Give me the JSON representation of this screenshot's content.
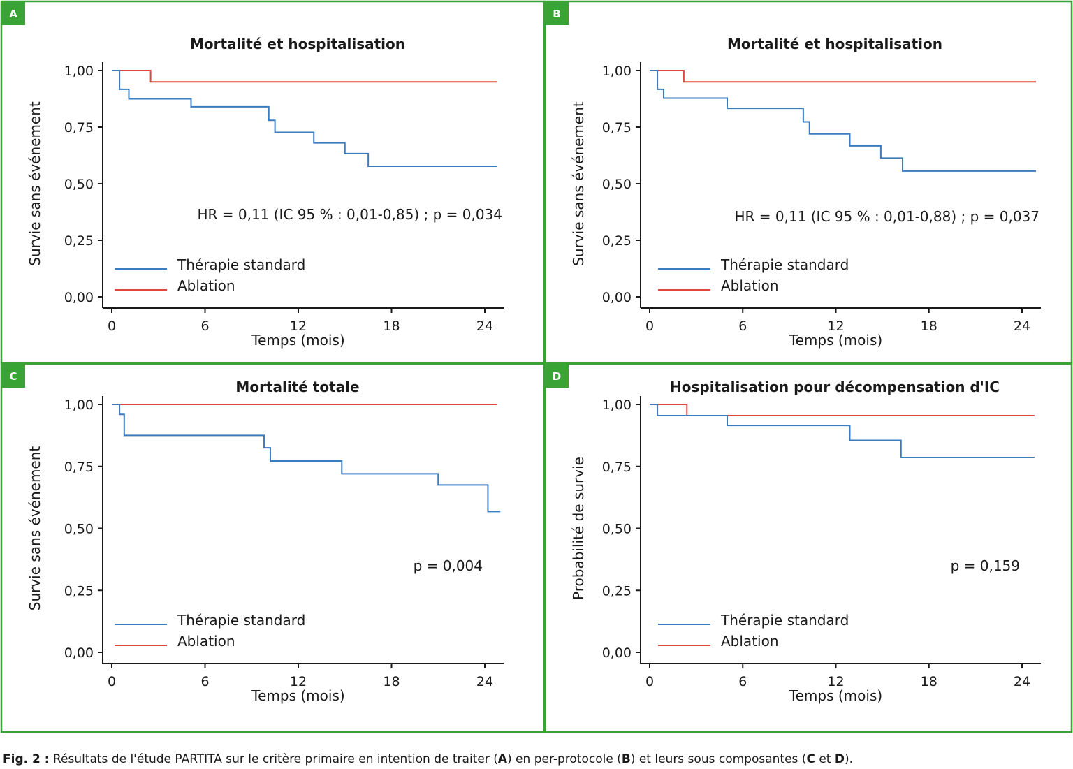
{
  "colors": {
    "frame": "#3aa335",
    "standard": "#3b7bbf",
    "ablation": "#e0463c",
    "axis": "#1a1a1a"
  },
  "chart_data": [
    {
      "panel": "A",
      "type": "line",
      "step": true,
      "title": "Mortalité et hospitalisation",
      "xlabel": "Temps (mois)",
      "ylabel": "Survie sans événement",
      "xticks": [
        "0",
        "6",
        "12",
        "18",
        "24"
      ],
      "yticks": [
        "0,00",
        "0,25",
        "0,50",
        "0,75",
        "1,00"
      ],
      "xlim": [
        0,
        25
      ],
      "ylim": [
        0,
        1
      ],
      "legend": "bottom-left",
      "annotation": "HR = 0,11 (IC 95 % : 0,01-0,85) ; p = 0,034",
      "series": [
        {
          "name": "Thérapie standard",
          "color": "#3b7bbf",
          "x": [
            0,
            0.5,
            1.1,
            5.1,
            10.1,
            10.5,
            13.0,
            15.0,
            16.5,
            24.8
          ],
          "y": [
            1.0,
            0.917,
            0.875,
            0.84,
            0.78,
            0.727,
            0.68,
            0.633,
            0.577,
            0.577
          ]
        },
        {
          "name": "Ablation",
          "color": "#e0463c",
          "x": [
            0,
            2.5,
            24.8
          ],
          "y": [
            1.0,
            0.95,
            0.95
          ]
        }
      ]
    },
    {
      "panel": "B",
      "type": "line",
      "step": true,
      "title": "Mortalité et hospitalisation",
      "xlabel": "Temps (mois)",
      "ylabel": "Survie sans événement",
      "xticks": [
        "0",
        "6",
        "12",
        "18",
        "24"
      ],
      "yticks": [
        "0,00",
        "0,25",
        "0,50",
        "0,75",
        "1,00"
      ],
      "xlim": [
        0,
        25
      ],
      "ylim": [
        0,
        1
      ],
      "legend": "bottom-left",
      "annotation": "HR = 0,11 (IC 95 % : 0,01-0,88) ; p = 0,037",
      "series": [
        {
          "name": "Thérapie standard",
          "color": "#3b7bbf",
          "x": [
            0,
            0.5,
            0.9,
            5.0,
            9.9,
            10.3,
            12.9,
            14.9,
            16.3,
            24.9
          ],
          "y": [
            1.0,
            0.917,
            0.878,
            0.833,
            0.773,
            0.72,
            0.667,
            0.613,
            0.556,
            0.556
          ]
        },
        {
          "name": "Ablation",
          "color": "#e0463c",
          "x": [
            0,
            2.2,
            24.9
          ],
          "y": [
            1.0,
            0.95,
            0.95
          ]
        }
      ]
    },
    {
      "panel": "C",
      "type": "line",
      "step": true,
      "title": "Mortalité totale",
      "xlabel": "Temps (mois)",
      "ylabel": "Survie sans événement",
      "xticks": [
        "0",
        "6",
        "12",
        "18",
        "24"
      ],
      "yticks": [
        "0,00",
        "0,25",
        "0,50",
        "0,75",
        "1,00"
      ],
      "xlim": [
        0,
        25
      ],
      "ylim": [
        0,
        1
      ],
      "legend": "bottom-left",
      "annotation": "p = 0,004",
      "series": [
        {
          "name": "Thérapie standard",
          "color": "#3b7bbf",
          "x": [
            0,
            0.5,
            0.8,
            9.8,
            10.2,
            14.8,
            21.0,
            24.2,
            25.0
          ],
          "y": [
            1.0,
            0.96,
            0.875,
            0.825,
            0.772,
            0.72,
            0.675,
            0.568,
            0.568
          ]
        },
        {
          "name": "Ablation",
          "color": "#e0463c",
          "x": [
            0,
            24.8
          ],
          "y": [
            1.0,
            1.0
          ]
        }
      ]
    },
    {
      "panel": "D",
      "type": "line",
      "step": true,
      "title": "Hospitalisation pour décompensation d'IC",
      "xlabel": "Temps (mois)",
      "ylabel": "Probabilité de survie",
      "xticks": [
        "0",
        "6",
        "12",
        "18",
        "24"
      ],
      "yticks": [
        "0,00",
        "0,25",
        "0,50",
        "0,75",
        "1,00"
      ],
      "xlim": [
        0,
        25
      ],
      "ylim": [
        0,
        1
      ],
      "legend": "bottom-left",
      "annotation": "p = 0,159",
      "series": [
        {
          "name": "Thérapie standard",
          "color": "#3b7bbf",
          "x": [
            0,
            0.5,
            5.0,
            12.9,
            16.2,
            24.8
          ],
          "y": [
            1.0,
            0.955,
            0.915,
            0.855,
            0.786,
            0.786
          ]
        },
        {
          "name": "Ablation",
          "color": "#e0463c",
          "x": [
            0,
            2.4,
            24.8
          ],
          "y": [
            1.0,
            0.955,
            0.955
          ]
        }
      ]
    }
  ],
  "caption": {
    "fig": "Fig. 2 :",
    "parts": [
      {
        "t": " Résultats de l'étude PARTITA sur le critère primaire en intention de traiter (",
        "b": false
      },
      {
        "t": "A",
        "b": true
      },
      {
        "t": ") en per-protocole (",
        "b": false
      },
      {
        "t": "B",
        "b": true
      },
      {
        "t": ") et leurs sous composantes (",
        "b": false
      },
      {
        "t": "C",
        "b": true
      },
      {
        "t": " et ",
        "b": false
      },
      {
        "t": "D",
        "b": true
      },
      {
        "t": ").",
        "b": false
      }
    ]
  }
}
